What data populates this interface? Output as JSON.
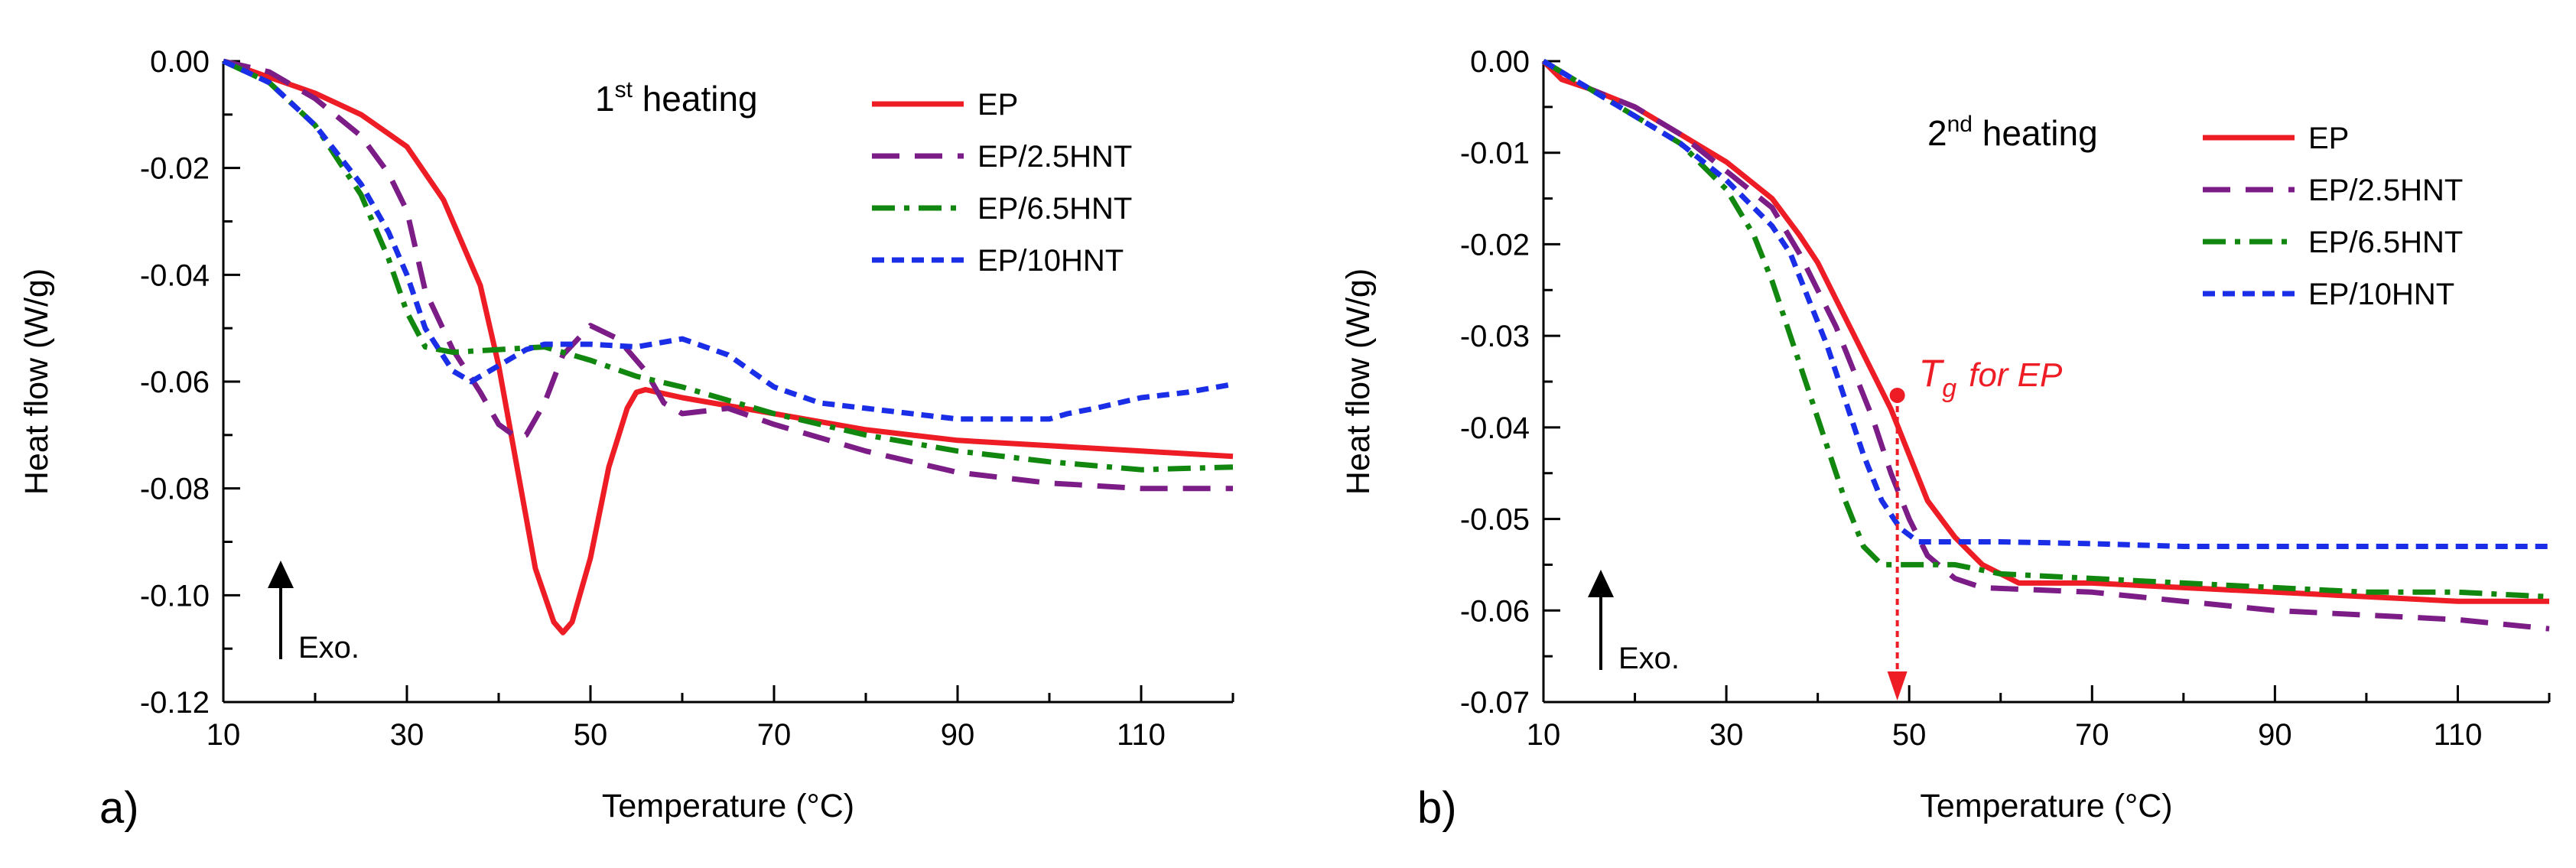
{
  "chart_data": [
    {
      "type": "line",
      "panel_label": "a)",
      "heading": {
        "prefix": "1",
        "sup": "st",
        "suffix": "heating"
      },
      "xlabel": "Temperature (°C)",
      "ylabel": "Heat flow (W/g)",
      "xlim": [
        10,
        120
      ],
      "ylim": [
        -0.12,
        0.0
      ],
      "xticks": [
        10,
        30,
        50,
        70,
        90,
        110
      ],
      "xtick_labels": [
        "10",
        "30",
        "50",
        "70",
        "90",
        "110"
      ],
      "yticks": [
        0,
        -0.02,
        -0.04,
        -0.06,
        -0.08,
        -0.1,
        -0.12
      ],
      "ytick_labels": [
        "0.00",
        "-0.02",
        "-0.04",
        "-0.06",
        "-0.08",
        "-0.10",
        "-0.12"
      ],
      "exo_label": "Exo.",
      "legend_position": "top-right",
      "series": [
        {
          "name": "EP",
          "color": "#ee1c25",
          "dash": "solid",
          "x": [
            10,
            15,
            20,
            25,
            30,
            34,
            38,
            40,
            42,
            44,
            46,
            47,
            48,
            50,
            52,
            54,
            55,
            56,
            60,
            70,
            80,
            90,
            100,
            110,
            120
          ],
          "y": [
            0.0,
            -0.003,
            -0.006,
            -0.01,
            -0.016,
            -0.026,
            -0.042,
            -0.057,
            -0.076,
            -0.095,
            -0.105,
            -0.107,
            -0.105,
            -0.093,
            -0.076,
            -0.065,
            -0.062,
            -0.0615,
            -0.063,
            -0.066,
            -0.069,
            -0.071,
            -0.072,
            -0.073,
            -0.074
          ]
        },
        {
          "name": "EP/2.5HNT",
          "color": "#7b1c87",
          "dash": "long-dash",
          "x": [
            10,
            15,
            20,
            25,
            28,
            30,
            32,
            35,
            38,
            40,
            42,
            43,
            45,
            47,
            50,
            53,
            56,
            58,
            60,
            65,
            70,
            80,
            90,
            100,
            110,
            120
          ],
          "y": [
            0.0,
            -0.002,
            -0.007,
            -0.014,
            -0.021,
            -0.028,
            -0.043,
            -0.054,
            -0.062,
            -0.068,
            -0.0705,
            -0.07,
            -0.064,
            -0.055,
            -0.0495,
            -0.052,
            -0.058,
            -0.064,
            -0.066,
            -0.065,
            -0.068,
            -0.073,
            -0.077,
            -0.079,
            -0.08,
            -0.08
          ]
        },
        {
          "name": "EP/6.5HNT",
          "color": "#12870f",
          "dash": "dash-dot",
          "x": [
            10,
            15,
            20,
            25,
            28,
            30,
            32,
            35,
            40,
            45,
            50,
            55,
            60,
            70,
            80,
            90,
            100,
            110,
            120
          ],
          "y": [
            0.0,
            -0.004,
            -0.012,
            -0.025,
            -0.037,
            -0.047,
            -0.0535,
            -0.0545,
            -0.054,
            -0.0535,
            -0.056,
            -0.059,
            -0.061,
            -0.066,
            -0.07,
            -0.073,
            -0.075,
            -0.0765,
            -0.076
          ]
        },
        {
          "name": "EP/10HNT",
          "color": "#1a2ee8",
          "dash": "short-dash",
          "x": [
            10,
            15,
            20,
            25,
            28,
            30,
            32,
            35,
            37,
            40,
            43,
            45,
            50,
            55,
            60,
            65,
            70,
            75,
            80,
            90,
            100,
            102,
            105,
            110,
            115,
            120
          ],
          "y": [
            0.0,
            -0.004,
            -0.012,
            -0.023,
            -0.032,
            -0.04,
            -0.05,
            -0.058,
            -0.06,
            -0.057,
            -0.054,
            -0.053,
            -0.053,
            -0.0535,
            -0.052,
            -0.055,
            -0.061,
            -0.064,
            -0.065,
            -0.067,
            -0.067,
            -0.066,
            -0.065,
            -0.063,
            -0.062,
            -0.0605
          ]
        }
      ]
    },
    {
      "type": "line",
      "panel_label": "b)",
      "heading": {
        "prefix": "2",
        "sup": "nd",
        "suffix": "heating"
      },
      "xlabel": "Temperature (°C)",
      "ylabel": "Heat flow (W/g)",
      "xlim": [
        10,
        120
      ],
      "ylim": [
        -0.07,
        0.0
      ],
      "xticks": [
        10,
        30,
        50,
        70,
        90,
        110
      ],
      "xtick_labels": [
        "10",
        "30",
        "50",
        "70",
        "90",
        "110"
      ],
      "yticks": [
        0,
        -0.01,
        -0.02,
        -0.03,
        -0.04,
        -0.05,
        -0.06,
        -0.07
      ],
      "ytick_labels": [
        "0.00",
        "-0.01",
        "-0.02",
        "-0.03",
        "-0.04",
        "-0.05",
        "-0.06",
        "-0.07"
      ],
      "exo_label": "Exo.",
      "legend_position": "top-right",
      "annotation": {
        "text_main": "T",
        "text_sub": "g",
        "text_rest": "for EP",
        "x": 48.7,
        "y": -0.0365,
        "color": "#ee1c25"
      },
      "series": [
        {
          "name": "EP",
          "color": "#ee1c25",
          "dash": "solid",
          "x": [
            10,
            12,
            15,
            20,
            25,
            30,
            35,
            38,
            40,
            42,
            44,
            46,
            48,
            50,
            52,
            55,
            58,
            62,
            70,
            80,
            90,
            100,
            110,
            120
          ],
          "y": [
            0.0,
            -0.002,
            -0.003,
            -0.005,
            -0.008,
            -0.011,
            -0.015,
            -0.019,
            -0.022,
            -0.026,
            -0.03,
            -0.034,
            -0.038,
            -0.043,
            -0.048,
            -0.052,
            -0.055,
            -0.057,
            -0.057,
            -0.0575,
            -0.058,
            -0.0585,
            -0.059,
            -0.059
          ]
        },
        {
          "name": "EP/2.5HNT",
          "color": "#7b1c87",
          "dash": "long-dash",
          "x": [
            10,
            15,
            20,
            25,
            30,
            35,
            38,
            40,
            42,
            44,
            46,
            48,
            50,
            52,
            55,
            58,
            70,
            80,
            90,
            100,
            110,
            120
          ],
          "y": [
            0.0,
            -0.003,
            -0.005,
            -0.008,
            -0.012,
            -0.016,
            -0.021,
            -0.025,
            -0.029,
            -0.034,
            -0.039,
            -0.045,
            -0.05,
            -0.054,
            -0.0565,
            -0.0575,
            -0.058,
            -0.059,
            -0.06,
            -0.0605,
            -0.061,
            -0.062
          ]
        },
        {
          "name": "EP/6.5HNT",
          "color": "#12870f",
          "dash": "dash-dot",
          "x": [
            10,
            15,
            20,
            25,
            30,
            33,
            35,
            37,
            39,
            41,
            43,
            45,
            47,
            50,
            55,
            60,
            70,
            80,
            90,
            100,
            110,
            120
          ],
          "y": [
            0.0,
            -0.003,
            -0.006,
            -0.009,
            -0.014,
            -0.019,
            -0.024,
            -0.03,
            -0.036,
            -0.042,
            -0.048,
            -0.053,
            -0.055,
            -0.055,
            -0.055,
            -0.056,
            -0.0565,
            -0.057,
            -0.0575,
            -0.058,
            -0.058,
            -0.0585
          ]
        },
        {
          "name": "EP/10HNT",
          "color": "#1a2ee8",
          "dash": "short-dash",
          "x": [
            10,
            15,
            20,
            25,
            30,
            35,
            37,
            39,
            41,
            43,
            45,
            47,
            49,
            51,
            55,
            60,
            70,
            80,
            90,
            100,
            110,
            120
          ],
          "y": [
            0.0,
            -0.003,
            -0.006,
            -0.009,
            -0.013,
            -0.018,
            -0.021,
            -0.026,
            -0.031,
            -0.037,
            -0.043,
            -0.048,
            -0.051,
            -0.0525,
            -0.0525,
            -0.0525,
            -0.0527,
            -0.053,
            -0.053,
            -0.053,
            -0.053,
            -0.053
          ]
        }
      ]
    }
  ]
}
